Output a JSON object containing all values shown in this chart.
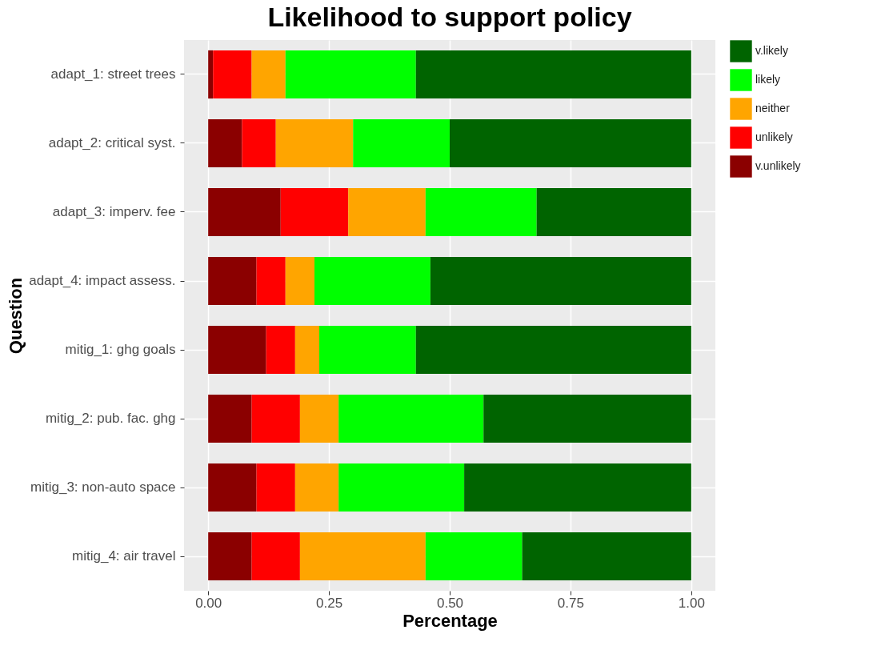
{
  "chart_data": {
    "type": "bar",
    "orientation": "horizontal",
    "stacked": true,
    "title": "Likelihood to support policy",
    "xlabel": "Percentage",
    "ylabel": "Question",
    "categories": [
      "adapt_1: street trees",
      "adapt_2: critical syst.",
      "adapt_3: imperv. fee",
      "adapt_4: impact assess.",
      "mitig_1: ghg goals",
      "mitig_2: pub. fac. ghg",
      "mitig_3: non-auto space",
      "mitig_4: air travel"
    ],
    "series": [
      {
        "name": "v.unlikely",
        "color": "#8b0000",
        "values": [
          0.01,
          0.07,
          0.15,
          0.1,
          0.12,
          0.09,
          0.1,
          0.09
        ]
      },
      {
        "name": "unlikely",
        "color": "#ff0000",
        "values": [
          0.08,
          0.07,
          0.14,
          0.06,
          0.06,
          0.1,
          0.08,
          0.1
        ]
      },
      {
        "name": "neither",
        "color": "#ffa500",
        "values": [
          0.07,
          0.16,
          0.16,
          0.06,
          0.05,
          0.08,
          0.09,
          0.26
        ]
      },
      {
        "name": "likely",
        "color": "#00ff00",
        "values": [
          0.27,
          0.2,
          0.23,
          0.24,
          0.2,
          0.3,
          0.26,
          0.2
        ]
      },
      {
        "name": "v.likely",
        "color": "#006400",
        "values": [
          0.57,
          0.5,
          0.32,
          0.54,
          0.57,
          0.43,
          0.47,
          0.35
        ]
      }
    ],
    "xlim": [
      -0.05,
      1.05
    ],
    "xticks": [
      {
        "value": 0,
        "label": "0.00"
      },
      {
        "value": 0.25,
        "label": "0.25"
      },
      {
        "value": 0.5,
        "label": "0.50"
      },
      {
        "value": 0.75,
        "label": "0.75"
      },
      {
        "value": 1,
        "label": "1.00"
      }
    ],
    "grid": true,
    "legend": "right"
  }
}
